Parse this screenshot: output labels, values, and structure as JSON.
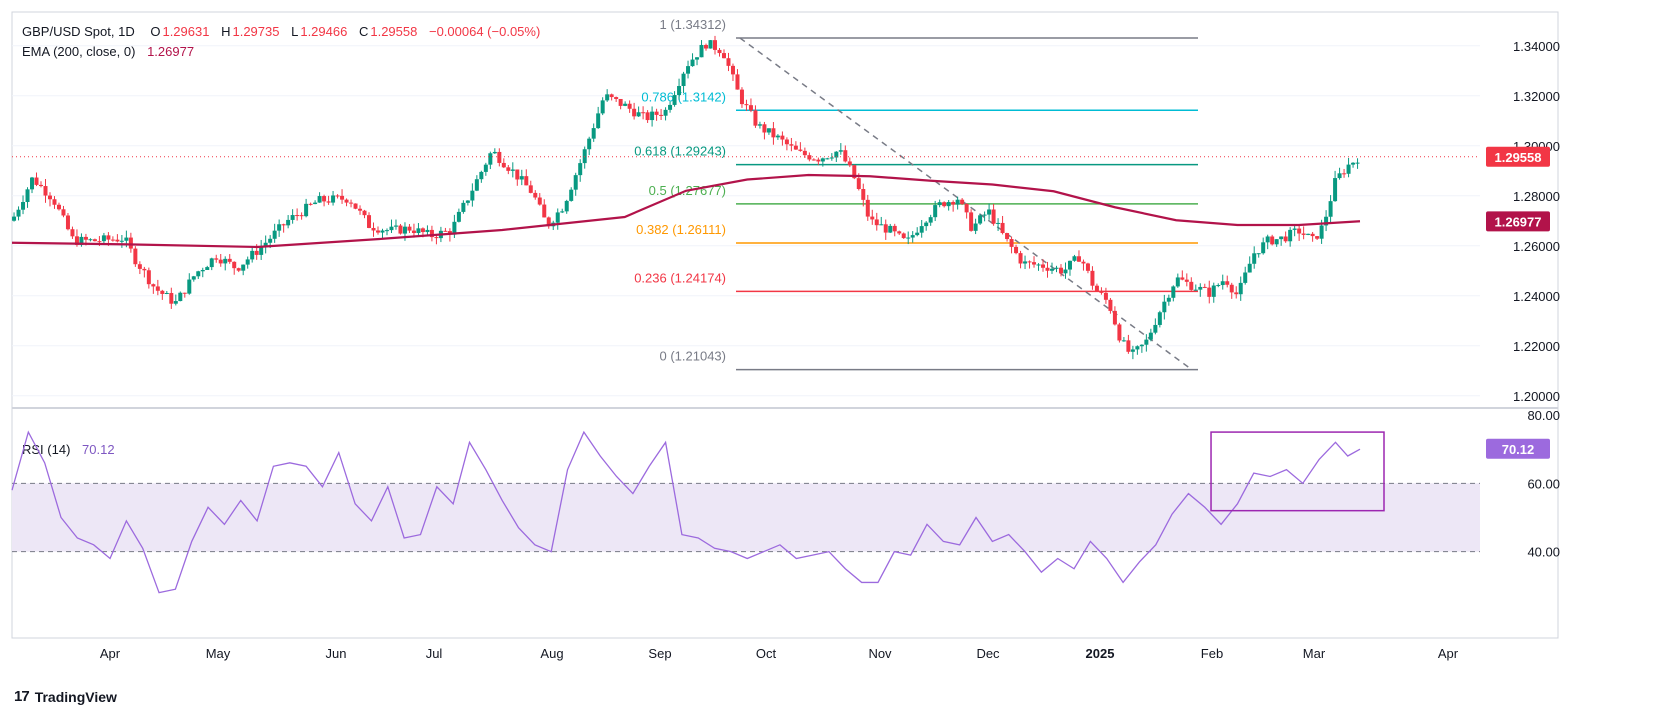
{
  "header": {
    "symbol": "GBP/USD Spot, 1D",
    "open_label": "O",
    "open": "1.29631",
    "high_label": "H",
    "high": "1.29735",
    "low_label": "L",
    "low": "1.29466",
    "close_label": "C",
    "close": "1.29558",
    "change": "−0.00064 (−0.05%)",
    "ema_label": "EMA (200, close, 0)",
    "ema_value": "1.26977",
    "rsi_label": "RSI (14)",
    "rsi_value": "70.12"
  },
  "brand": {
    "name": "TradingView",
    "mark": "17"
  },
  "colors": {
    "up": "#089981",
    "down": "#f23645",
    "ema": "#b2134a",
    "rsi": "#9c6ade",
    "rsi_band": "#ede7f6",
    "price_label": "#f23645",
    "ema_label": "#b2134a",
    "rsi_label": "#9c6ade"
  },
  "chart_data": [
    {
      "type": "candlestick",
      "title": "GBP/USD Spot, 1D",
      "x_ticks": [
        "Apr",
        "May",
        "Jun",
        "Jul",
        "Aug",
        "Sep",
        "Oct",
        "Nov",
        "Dec",
        "2025",
        "Feb",
        "Mar",
        "Apr"
      ],
      "y_ticks": [
        "1.34000",
        "1.32000",
        "1.30000",
        "1.28000",
        "1.26000",
        "1.24000",
        "1.22000",
        "1.20000"
      ],
      "ylim": [
        1.1955,
        1.3535
      ],
      "last_price": "1.29558",
      "ema_last": "1.26977",
      "grid": true,
      "fibonacci": [
        {
          "level": "1",
          "price": "1.34312",
          "color": "#787b86"
        },
        {
          "level": "0.786",
          "price": "1.3142",
          "color": "#00bcd4"
        },
        {
          "level": "0.618",
          "price": "1.29243",
          "color": "#089981"
        },
        {
          "level": "0.5",
          "price": "1.27677",
          "color": "#4caf50"
        },
        {
          "level": "0.382",
          "price": "1.26111",
          "color": "#ff9800"
        },
        {
          "level": "0.236",
          "price": "1.24174",
          "color": "#f23645"
        },
        {
          "level": "0",
          "price": "1.21043",
          "color": "#787b86"
        }
      ],
      "trend_line": {
        "from": [
          1.3431,
          "late Sep"
        ],
        "to": [
          1.2104,
          "late Jan"
        ]
      },
      "close_path": [
        [
          0,
          1.27
        ],
        [
          10,
          1.287
        ],
        [
          20,
          1.279
        ],
        [
          30,
          1.262
        ],
        [
          40,
          1.262
        ],
        [
          55,
          1.263
        ],
        [
          60,
          1.255
        ],
        [
          70,
          1.243
        ],
        [
          80,
          1.237
        ],
        [
          90,
          1.249
        ],
        [
          100,
          1.256
        ],
        [
          110,
          1.251
        ],
        [
          120,
          1.258
        ],
        [
          135,
          1.27
        ],
        [
          150,
          1.278
        ],
        [
          165,
          1.279
        ],
        [
          175,
          1.268
        ],
        [
          185,
          1.266
        ],
        [
          195,
          1.267
        ],
        [
          205,
          1.264
        ],
        [
          215,
          1.266
        ],
        [
          225,
          1.282
        ],
        [
          235,
          1.298
        ],
        [
          245,
          1.29
        ],
        [
          255,
          1.281
        ],
        [
          262,
          1.268
        ],
        [
          270,
          1.276
        ],
        [
          280,
          1.297
        ],
        [
          290,
          1.32
        ],
        [
          300,
          1.316
        ],
        [
          310,
          1.311
        ],
        [
          320,
          1.314
        ],
        [
          330,
          1.332
        ],
        [
          340,
          1.341
        ],
        [
          348,
          1.338
        ],
        [
          356,
          1.32
        ],
        [
          365,
          1.308
        ],
        [
          375,
          1.303
        ],
        [
          385,
          1.297
        ],
        [
          395,
          1.295
        ],
        [
          405,
          1.298
        ],
        [
          412,
          1.288
        ],
        [
          420,
          1.27
        ],
        [
          430,
          1.266
        ],
        [
          438,
          1.261
        ],
        [
          446,
          1.27
        ],
        [
          455,
          1.277
        ],
        [
          463,
          1.279
        ],
        [
          470,
          1.267
        ],
        [
          478,
          1.274
        ],
        [
          486,
          1.263
        ],
        [
          495,
          1.253
        ],
        [
          505,
          1.252
        ],
        [
          515,
          1.25
        ],
        [
          523,
          1.256
        ],
        [
          530,
          1.243
        ],
        [
          537,
          1.237
        ],
        [
          543,
          1.222
        ],
        [
          548,
          1.216
        ],
        [
          555,
          1.221
        ],
        [
          562,
          1.234
        ],
        [
          570,
          1.247
        ],
        [
          578,
          1.244
        ],
        [
          586,
          1.241
        ],
        [
          594,
          1.247
        ],
        [
          600,
          1.24
        ],
        [
          608,
          1.257
        ],
        [
          615,
          1.262
        ],
        [
          622,
          1.263
        ],
        [
          630,
          1.266
        ],
        [
          637,
          1.262
        ],
        [
          642,
          1.268
        ],
        [
          648,
          1.286
        ],
        [
          654,
          1.292
        ],
        [
          660,
          1.296
        ]
      ],
      "ema_path": [
        [
          0,
          1.2612
        ],
        [
          60,
          1.2605
        ],
        [
          120,
          1.2595
        ],
        [
          180,
          1.2627
        ],
        [
          240,
          1.2663
        ],
        [
          300,
          1.2715
        ],
        [
          330,
          1.282
        ],
        [
          360,
          1.2865
        ],
        [
          390,
          1.2883
        ],
        [
          420,
          1.2878
        ],
        [
          450,
          1.286
        ],
        [
          480,
          1.2845
        ],
        [
          510,
          1.2818
        ],
        [
          540,
          1.2754
        ],
        [
          570,
          1.2702
        ],
        [
          600,
          1.2683
        ],
        [
          630,
          1.2683
        ],
        [
          660,
          1.2698
        ]
      ]
    },
    {
      "type": "line",
      "title": "RSI (14)",
      "y_ticks": [
        "80.00",
        "60.00",
        "40.00"
      ],
      "ylim": [
        20,
        80
      ],
      "band": [
        40,
        60
      ],
      "last_value": "70.12",
      "highlight_box": {
        "from_x": 590,
        "to_x": 660,
        "y_range": [
          52,
          75
        ]
      },
      "values": [
        [
          0,
          58
        ],
        [
          8,
          75
        ],
        [
          16,
          66
        ],
        [
          24,
          50
        ],
        [
          32,
          44
        ],
        [
          40,
          42
        ],
        [
          48,
          38
        ],
        [
          56,
          49
        ],
        [
          64,
          41
        ],
        [
          72,
          28
        ],
        [
          80,
          29
        ],
        [
          88,
          43
        ],
        [
          96,
          53
        ],
        [
          104,
          48
        ],
        [
          112,
          55
        ],
        [
          120,
          49
        ],
        [
          128,
          65
        ],
        [
          136,
          66
        ],
        [
          144,
          65
        ],
        [
          152,
          59
        ],
        [
          160,
          69
        ],
        [
          168,
          54
        ],
        [
          176,
          49
        ],
        [
          184,
          59
        ],
        [
          192,
          44
        ],
        [
          200,
          45
        ],
        [
          208,
          59
        ],
        [
          216,
          54
        ],
        [
          224,
          72
        ],
        [
          232,
          64
        ],
        [
          240,
          55
        ],
        [
          248,
          47
        ],
        [
          256,
          42
        ],
        [
          264,
          40
        ],
        [
          272,
          64
        ],
        [
          280,
          75
        ],
        [
          288,
          68
        ],
        [
          296,
          62
        ],
        [
          304,
          57
        ],
        [
          312,
          65
        ],
        [
          320,
          72
        ],
        [
          328,
          45
        ],
        [
          336,
          44
        ],
        [
          344,
          41
        ],
        [
          352,
          40
        ],
        [
          360,
          38
        ],
        [
          368,
          40
        ],
        [
          376,
          42
        ],
        [
          384,
          38
        ],
        [
          392,
          39
        ],
        [
          400,
          40
        ],
        [
          408,
          35
        ],
        [
          416,
          31
        ],
        [
          424,
          31
        ],
        [
          432,
          40
        ],
        [
          440,
          39
        ],
        [
          448,
          48
        ],
        [
          456,
          43
        ],
        [
          464,
          42
        ],
        [
          472,
          50
        ],
        [
          480,
          43
        ],
        [
          488,
          45
        ],
        [
          496,
          40
        ],
        [
          504,
          34
        ],
        [
          512,
          38
        ],
        [
          520,
          35
        ],
        [
          528,
          43
        ],
        [
          536,
          38
        ],
        [
          544,
          31
        ],
        [
          552,
          37
        ],
        [
          560,
          42
        ],
        [
          568,
          51
        ],
        [
          576,
          57
        ],
        [
          584,
          53
        ],
        [
          592,
          48
        ],
        [
          600,
          54
        ],
        [
          608,
          63
        ],
        [
          616,
          62
        ],
        [
          624,
          64
        ],
        [
          632,
          60
        ],
        [
          640,
          67
        ],
        [
          648,
          72
        ],
        [
          654,
          68
        ],
        [
          660,
          70
        ]
      ]
    }
  ]
}
